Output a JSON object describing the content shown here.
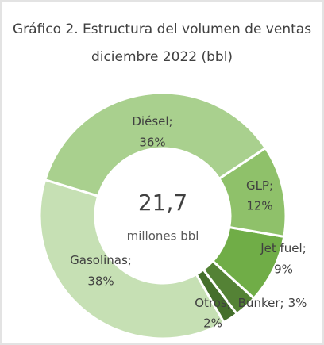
{
  "chart_data": {
    "type": "donut",
    "title": "Gráfico 2. Estructura del volumen de ventas diciembre 2022 (bbl)",
    "center_value": "21,7",
    "center_unit": "millones bbl",
    "categories": [
      "Diésel",
      "GLP",
      "Jet fuel",
      "Bunker",
      "Otros",
      "Gasolinas"
    ],
    "values": [
      36,
      12,
      9,
      3,
      2,
      38
    ],
    "value_labels": [
      "36%",
      "12%",
      "9%",
      "3%",
      "2%",
      "38%"
    ],
    "label_separator": ";",
    "colors": [
      "#a9d08e",
      "#8fc16a",
      "#70ad47",
      "#548235",
      "#456f2c",
      "#c6e0b4"
    ]
  }
}
